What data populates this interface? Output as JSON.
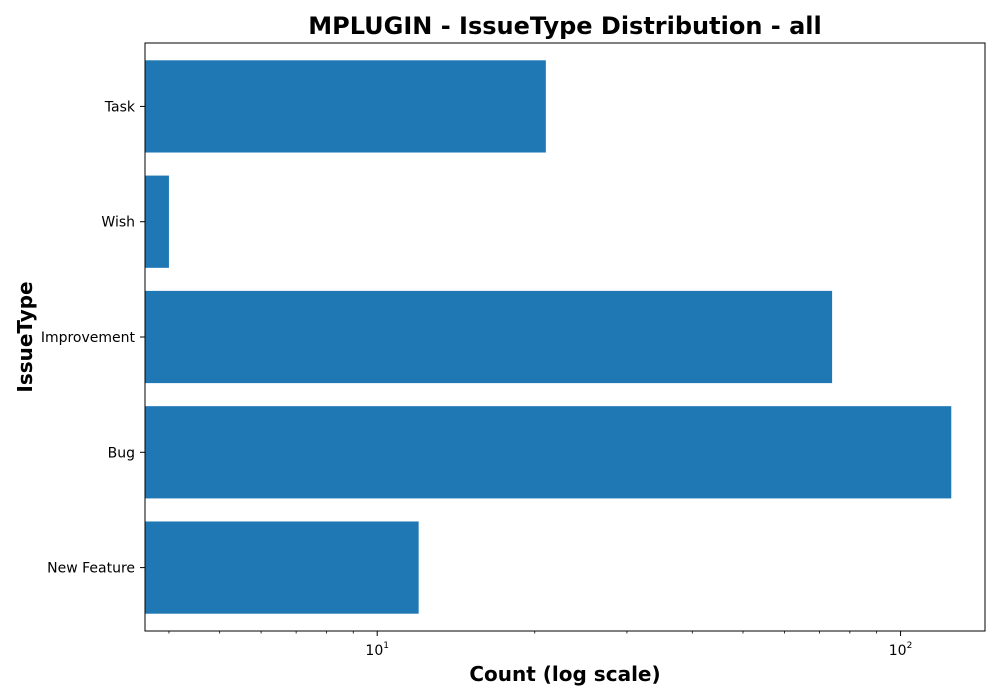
{
  "chart_data": {
    "type": "bar",
    "orientation": "horizontal",
    "title": "MPLUGIN - IssueType Distribution - all",
    "xlabel": "Count (log scale)",
    "ylabel": "IssueType",
    "x_scale": "log",
    "xlim": [
      3.6,
      145
    ],
    "x_ticks": [
      {
        "value": 10,
        "base": "10",
        "exp": "1"
      },
      {
        "value": 100,
        "base": "10",
        "exp": "2"
      }
    ],
    "categories": [
      "New Feature",
      "Bug",
      "Improvement",
      "Wish",
      "Task"
    ],
    "values": [
      12,
      125,
      74,
      4,
      21
    ],
    "bar_color": "#1f77b4",
    "grid": false,
    "legend": "none"
  }
}
